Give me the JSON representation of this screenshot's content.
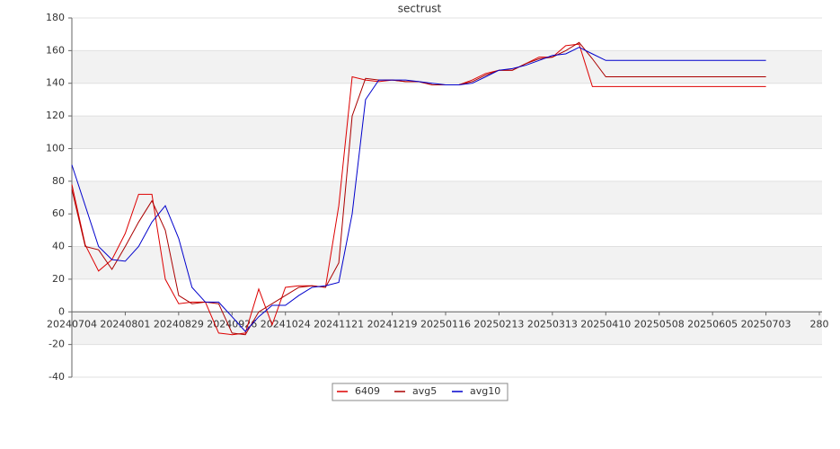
{
  "chart_data": {
    "type": "line",
    "title": "sectrust",
    "x": [
      0,
      5,
      10,
      15,
      20,
      25,
      30,
      35,
      40,
      45,
      50,
      55,
      60,
      65,
      70,
      75,
      80,
      85,
      90,
      95,
      100,
      105,
      110,
      115,
      120,
      125,
      130,
      135,
      140,
      145,
      150,
      155,
      160,
      165,
      170,
      175,
      180,
      185,
      190,
      195,
      200,
      205,
      210,
      215,
      220,
      225,
      230,
      235,
      240,
      245,
      250,
      255,
      260
    ],
    "xlim": [
      0,
      280
    ],
    "xticks": [
      {
        "value": 0,
        "label": "20240704"
      },
      {
        "value": 20,
        "label": "20240801"
      },
      {
        "value": 40,
        "label": "20240829"
      },
      {
        "value": 60,
        "label": "20240926"
      },
      {
        "value": 80,
        "label": "20241024"
      },
      {
        "value": 100,
        "label": "20241121"
      },
      {
        "value": 120,
        "label": "20241219"
      },
      {
        "value": 140,
        "label": "20250116"
      },
      {
        "value": 160,
        "label": "20250213"
      },
      {
        "value": 180,
        "label": "20250313"
      },
      {
        "value": 200,
        "label": "20250410"
      },
      {
        "value": 220,
        "label": "20250508"
      },
      {
        "value": 240,
        "label": "20250605"
      },
      {
        "value": 260,
        "label": "20250703"
      },
      280
    ],
    "ylim": [
      -40,
      180
    ],
    "yticks": [
      -40,
      -20,
      0,
      20,
      40,
      60,
      80,
      100,
      120,
      140,
      160,
      180
    ],
    "shaded_bands": true,
    "series": [
      {
        "name": "6409",
        "color": "#dd0000",
        "values": [
          78,
          41,
          25,
          32,
          48,
          72,
          72,
          20,
          5,
          6,
          6,
          -13,
          -14,
          -13,
          14,
          -8,
          15,
          16,
          16,
          15,
          65,
          144,
          142,
          141,
          142,
          141,
          141,
          139,
          139,
          139,
          142,
          146,
          148,
          148,
          152,
          156,
          156,
          163,
          164,
          138,
          138,
          138,
          138,
          138,
          138,
          138,
          138,
          138,
          138,
          138,
          138,
          138,
          138
        ]
      },
      {
        "name": "avg5",
        "color": "#aa0000",
        "values": [
          75,
          40,
          38,
          26,
          40,
          55,
          68,
          50,
          10,
          5,
          6,
          5,
          -13,
          -14,
          0,
          5,
          10,
          15,
          16,
          15,
          30,
          120,
          143,
          142,
          142,
          141,
          141,
          139,
          139,
          139,
          141,
          145,
          148,
          148,
          152,
          155,
          156,
          160,
          165,
          155,
          144,
          144,
          144,
          144,
          144,
          144,
          144,
          144,
          144,
          144,
          144,
          144,
          144
        ]
      },
      {
        "name": "avg10",
        "color": "#0000cc",
        "values": [
          90,
          65,
          40,
          32,
          31,
          40,
          55,
          65,
          45,
          15,
          6,
          6,
          -3,
          -12,
          -3,
          4,
          4,
          10,
          15,
          16,
          18,
          60,
          130,
          142,
          142,
          142,
          141,
          140,
          139,
          139,
          140,
          144,
          148,
          149,
          151,
          154,
          157,
          158,
          162,
          158,
          154,
          154,
          154,
          154,
          154,
          154,
          154,
          154,
          154,
          154,
          154,
          154,
          154
        ]
      }
    ]
  }
}
